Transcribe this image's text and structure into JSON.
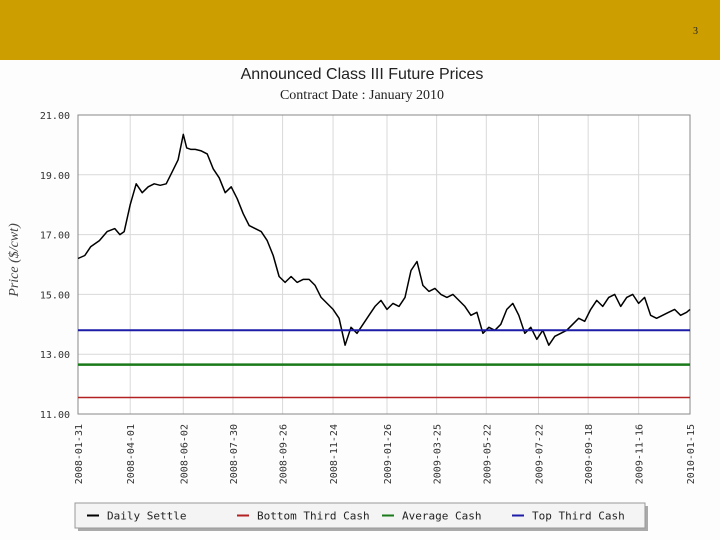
{
  "slide_number": "3",
  "colors": {
    "header_bar": "#cc9e00",
    "daily_settle": "#000000",
    "bottom_third": "#b22222",
    "average": "#1a7a1a",
    "top_third": "#1c1ca8"
  },
  "chart_data": {
    "type": "line",
    "title": "Announced Class III  Future Prices",
    "subtitle": "Contract Date : January 2010",
    "ylabel": "Price ($/cwt)",
    "xlabel": "",
    "ylim": [
      11,
      21
    ],
    "yticks": [
      "21.00",
      "19.00",
      "17.00",
      "15.00",
      "13.00",
      "11.00"
    ],
    "xticks": [
      "2008-01-31",
      "2008-04-01",
      "2008-06-02",
      "2008-07-30",
      "2008-09-26",
      "2008-11-24",
      "2009-01-26",
      "2009-03-25",
      "2009-05-22",
      "2009-07-22",
      "2009-09-18",
      "2009-11-16",
      "2010-01-15"
    ],
    "grid": true,
    "legend_position": "bottom",
    "series": [
      {
        "name": "Daily Settle",
        "x": [
          "2008-01-31",
          "2008-02-08",
          "2008-02-15",
          "2008-02-25",
          "2008-03-05",
          "2008-03-14",
          "2008-03-20",
          "2008-03-25",
          "2008-04-01",
          "2008-04-08",
          "2008-04-15",
          "2008-04-22",
          "2008-04-29",
          "2008-05-06",
          "2008-05-13",
          "2008-05-20",
          "2008-05-27",
          "2008-06-02",
          "2008-06-06",
          "2008-06-11",
          "2008-06-16",
          "2008-06-23",
          "2008-06-30",
          "2008-07-07",
          "2008-07-14",
          "2008-07-21",
          "2008-07-28",
          "2008-08-04",
          "2008-08-11",
          "2008-08-18",
          "2008-08-25",
          "2008-09-01",
          "2008-09-08",
          "2008-09-15",
          "2008-09-22",
          "2008-09-29",
          "2008-10-06",
          "2008-10-13",
          "2008-10-20",
          "2008-10-27",
          "2008-11-03",
          "2008-11-10",
          "2008-11-17",
          "2008-11-24",
          "2008-12-01",
          "2008-12-08",
          "2008-12-15",
          "2008-12-22",
          "2009-01-05",
          "2009-01-12",
          "2009-01-19",
          "2009-01-26",
          "2009-02-02",
          "2009-02-09",
          "2009-02-16",
          "2009-02-23",
          "2009-03-02",
          "2009-03-09",
          "2009-03-16",
          "2009-03-23",
          "2009-03-30",
          "2009-04-06",
          "2009-04-13",
          "2009-04-20",
          "2009-04-27",
          "2009-05-04",
          "2009-05-11",
          "2009-05-18",
          "2009-05-25",
          "2009-06-01",
          "2009-06-08",
          "2009-06-15",
          "2009-06-22",
          "2009-06-29",
          "2009-07-06",
          "2009-07-13",
          "2009-07-20",
          "2009-07-27",
          "2009-08-03",
          "2009-08-10",
          "2009-08-17",
          "2009-08-24",
          "2009-08-31",
          "2009-09-07",
          "2009-09-14",
          "2009-09-21",
          "2009-09-28",
          "2009-10-05",
          "2009-10-12",
          "2009-10-19",
          "2009-10-26",
          "2009-11-02",
          "2009-11-09",
          "2009-11-16",
          "2009-11-23",
          "2009-11-30",
          "2009-12-07",
          "2009-12-14",
          "2009-12-21",
          "2009-12-28",
          "2010-01-04",
          "2010-01-11",
          "2010-01-15"
        ],
        "values": [
          16.2,
          16.3,
          16.6,
          16.8,
          17.1,
          17.2,
          17.0,
          17.1,
          18.0,
          18.7,
          18.4,
          18.6,
          18.7,
          18.65,
          18.7,
          19.1,
          19.5,
          20.35,
          19.9,
          19.85,
          19.85,
          19.8,
          19.7,
          19.2,
          18.9,
          18.4,
          18.6,
          18.2,
          17.7,
          17.3,
          17.2,
          17.1,
          16.8,
          16.3,
          15.6,
          15.4,
          15.6,
          15.4,
          15.5,
          15.5,
          15.3,
          14.9,
          14.7,
          14.5,
          14.2,
          13.3,
          13.9,
          13.7,
          14.3,
          14.6,
          14.8,
          14.5,
          14.7,
          14.6,
          14.9,
          15.8,
          16.1,
          15.3,
          15.1,
          15.2,
          15.0,
          14.9,
          15.0,
          14.8,
          14.6,
          14.3,
          14.4,
          13.7,
          13.9,
          13.8,
          14.0,
          14.5,
          14.7,
          14.3,
          13.7,
          13.9,
          13.5,
          13.8,
          13.3,
          13.6,
          13.7,
          13.8,
          14.0,
          14.2,
          14.1,
          14.5,
          14.8,
          14.6,
          14.9,
          15.0,
          14.6,
          14.9,
          15.0,
          14.7,
          14.9,
          14.3,
          14.2,
          14.3,
          14.4,
          14.5,
          14.3,
          14.4,
          14.5
        ]
      },
      {
        "name": "Bottom Third Cash",
        "constant": 11.55
      },
      {
        "name": "Average Cash",
        "constant": 12.65
      },
      {
        "name": "Top Third Cash",
        "constant": 13.8
      }
    ]
  }
}
